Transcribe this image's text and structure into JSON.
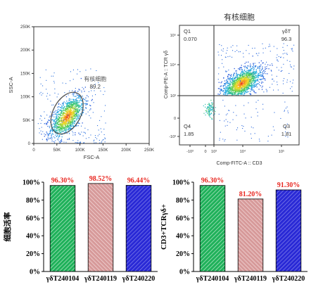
{
  "chart_data": [
    {
      "type": "scatter",
      "title": "",
      "xlabel": "FSC-A",
      "ylabel": "SSC-A",
      "xlim": [
        0,
        250000
      ],
      "ylim": [
        0,
        250000
      ],
      "x_ticks": [
        {
          "v": 0,
          "label": "0"
        },
        {
          "v": 50000,
          "label": "50K"
        },
        {
          "v": 100000,
          "label": "100K"
        },
        {
          "v": 150000,
          "label": "150K"
        },
        {
          "v": 200000,
          "label": "200K"
        },
        {
          "v": 250000,
          "label": "250K"
        }
      ],
      "y_ticks": [
        {
          "v": 0,
          "label": "0"
        },
        {
          "v": 50000,
          "label": "50K"
        },
        {
          "v": 100000,
          "label": "100K"
        },
        {
          "v": 150000,
          "label": "150K"
        },
        {
          "v": 200000,
          "label": "200K"
        },
        {
          "v": 250000,
          "label": "250K"
        }
      ],
      "gate": {
        "name": "有核细胞",
        "percent": "89.2",
        "center": [
          72000,
          65000
        ],
        "rx": 30000,
        "ry": 48000,
        "rotate_deg": 28
      },
      "cluster": {
        "center": [
          72000,
          58000
        ],
        "sx": 18000,
        "sy": 22000
      }
    },
    {
      "type": "scatter",
      "title": "有核细胞",
      "xlabel": "Comp-FITC-A :: CD3",
      "ylabel": "Comp-PE-A :: TCR γδ",
      "xlim": [
        -1000,
        100000
      ],
      "ylim": [
        -1000,
        100000
      ],
      "x_ticks": [
        "-10³",
        "0",
        "10³",
        "10⁴",
        "10⁵"
      ],
      "y_ticks": [
        "-10³",
        "0",
        "10³",
        "10⁴",
        "10⁵"
      ],
      "quadrants": {
        "Q1": {
          "name": "Q1",
          "value": "0.070"
        },
        "Q2": {
          "name": "γδT",
          "value": "96.3"
        },
        "Q3": {
          "name": "Q3",
          "value": "1.81"
        },
        "Q4": {
          "name": "Q4",
          "value": "1.85"
        }
      }
    },
    {
      "type": "bar",
      "title": "",
      "xlabel": "",
      "ylabel": "细胞活率",
      "ylim": [
        0,
        100
      ],
      "y_tick_labels": [
        "0%",
        "20%",
        "40%",
        "60%",
        "80%",
        "100%"
      ],
      "categories": [
        "γδT240104",
        "γδT240119",
        "γδT240220"
      ],
      "values": [
        96.3,
        98.52,
        96.44
      ],
      "value_labels": [
        "96.30%",
        "98.52%",
        "96.44%"
      ]
    },
    {
      "type": "bar",
      "title": "",
      "xlabel": "",
      "ylabel": "CD3+TCRγδ+",
      "ylim": [
        0,
        100
      ],
      "y_tick_labels": [
        "0%",
        "20%",
        "40%",
        "60%",
        "80%",
        "100%"
      ],
      "categories": [
        "γδT240104",
        "γδT240119",
        "γδT240220"
      ],
      "values": [
        96.3,
        81.2,
        91.3
      ],
      "value_labels": [
        "96.30%",
        "81.20%",
        "91.30%"
      ]
    }
  ],
  "colors": {
    "bar_green": "#1fb15a",
    "bar_pink": "#d79a9a",
    "bar_blue": "#2a2ad6",
    "value_label": "#e8261f",
    "axis": "#000000",
    "flow_axis": "#333333"
  }
}
